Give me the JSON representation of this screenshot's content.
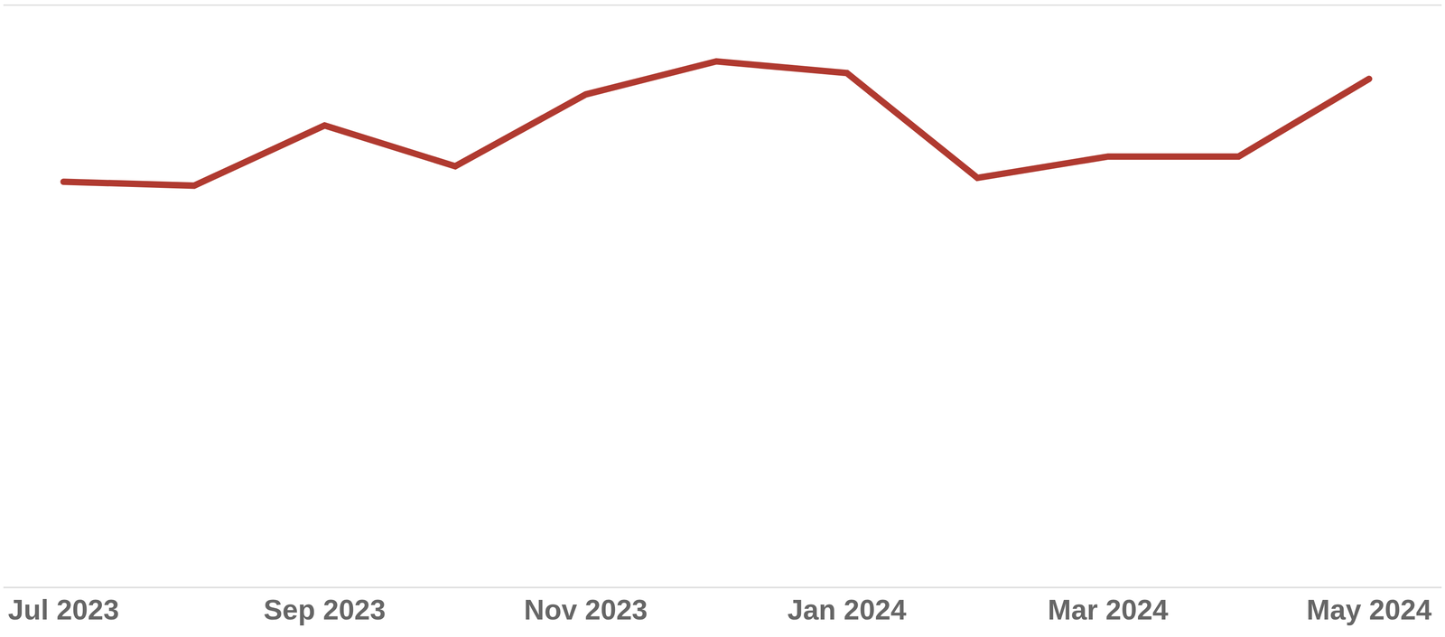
{
  "chart_data": {
    "type": "line",
    "categories": [
      "Jul 2023",
      null,
      "Sep 2023",
      null,
      "Nov 2023",
      null,
      "Jan 2024",
      null,
      "Mar 2024",
      null,
      "May 2024"
    ],
    "values": [
      2.09,
      2.07,
      2.38,
      2.17,
      2.54,
      2.71,
      2.65,
      2.11,
      2.22,
      2.22,
      2.62
    ],
    "color": "#b03a30",
    "ylim": [
      0,
      3
    ],
    "yticks": [
      0,
      1,
      2,
      3
    ],
    "grid": true,
    "tick_labels": "x"
  }
}
